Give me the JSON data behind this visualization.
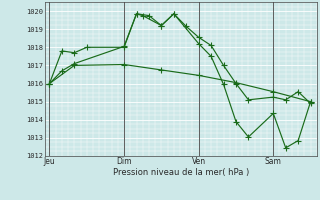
{
  "background_color": "#cde8e8",
  "plot_bg_color": "#cde8e8",
  "grid_major_color": "#ffffff",
  "grid_minor_color": "#ddf0f0",
  "line_color": "#1a6b1a",
  "ylim": [
    1012,
    1020.5
  ],
  "yticks": [
    1012,
    1013,
    1014,
    1015,
    1016,
    1017,
    1018,
    1019,
    1020
  ],
  "xlabel": "Pression niveau de la mer( hPa )",
  "day_labels": [
    "Jeu",
    "Dim",
    "Ven",
    "Sam"
  ],
  "day_positions": [
    0,
    48,
    96,
    144
  ],
  "xlim": [
    -3,
    172
  ],
  "series1_x": [
    0,
    8,
    16,
    24,
    48,
    56,
    60,
    72,
    80,
    88,
    96,
    104,
    112,
    120,
    128,
    144,
    152,
    160,
    168
  ],
  "series1_y": [
    1016.0,
    1017.8,
    1017.7,
    1018.0,
    1018.0,
    1019.85,
    1019.75,
    1019.2,
    1019.85,
    1019.15,
    1018.55,
    1018.1,
    1017.0,
    1016.0,
    1015.1,
    1015.25,
    1015.1,
    1015.55,
    1014.9
  ],
  "series2_x": [
    0,
    8,
    16,
    48,
    56,
    64,
    72,
    80,
    96,
    104,
    112,
    120,
    128,
    144,
    152,
    160,
    168
  ],
  "series2_y": [
    1016.0,
    1016.7,
    1017.1,
    1018.05,
    1019.85,
    1019.75,
    1019.2,
    1019.85,
    1018.2,
    1017.5,
    1015.95,
    1013.9,
    1013.05,
    1014.35,
    1012.45,
    1012.85,
    1015.0
  ],
  "series3_x": [
    0,
    16,
    48,
    72,
    96,
    120,
    144,
    168
  ],
  "series3_y": [
    1016.0,
    1017.0,
    1017.05,
    1016.75,
    1016.45,
    1016.05,
    1015.55,
    1015.0
  ]
}
